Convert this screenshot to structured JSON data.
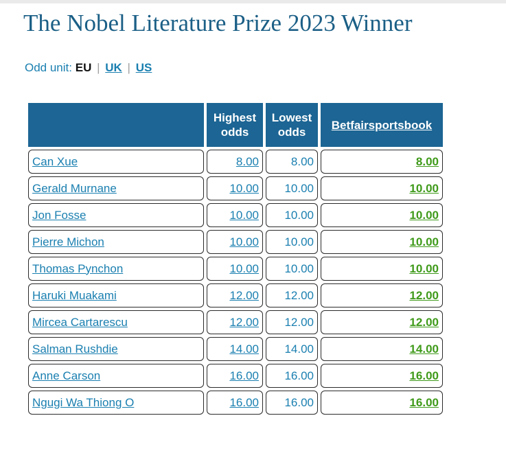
{
  "page": {
    "title": "The Nobel Literature Prize 2023 Winner"
  },
  "odd_unit": {
    "label": "Odd unit:",
    "current": "EU",
    "separator": "|",
    "options": [
      "UK",
      "US"
    ]
  },
  "table": {
    "headers": {
      "name": "",
      "highest": "Highest odds",
      "lowest": "Lowest odds",
      "bookmaker": "Betfairsportsbook"
    },
    "rows": [
      {
        "name": "Can Xue",
        "highest": "8.00",
        "lowest": "8.00",
        "bookmaker": "8.00"
      },
      {
        "name": "Gerald Murnane",
        "highest": "10.00",
        "lowest": "10.00",
        "bookmaker": "10.00"
      },
      {
        "name": "Jon Fosse",
        "highest": "10.00",
        "lowest": "10.00",
        "bookmaker": "10.00"
      },
      {
        "name": "Pierre Michon",
        "highest": "10.00",
        "lowest": "10.00",
        "bookmaker": "10.00"
      },
      {
        "name": "Thomas Pynchon",
        "highest": "10.00",
        "lowest": "10.00",
        "bookmaker": "10.00"
      },
      {
        "name": "Haruki Muakami",
        "highest": "12.00",
        "lowest": "12.00",
        "bookmaker": "12.00"
      },
      {
        "name": "Mircea Cartarescu",
        "highest": "12.00",
        "lowest": "12.00",
        "bookmaker": "12.00"
      },
      {
        "name": "Salman Rushdie",
        "highest": "14.00",
        "lowest": "14.00",
        "bookmaker": "14.00"
      },
      {
        "name": "Anne Carson",
        "highest": "16.00",
        "lowest": "16.00",
        "bookmaker": "16.00"
      },
      {
        "name": "Ngugi Wa Thiong O",
        "highest": "16.00",
        "lowest": "16.00",
        "bookmaker": "16.00"
      }
    ]
  },
  "colors": {
    "title": "#1b5f86",
    "header_bg": "#1c6594",
    "link": "#1a7fb0",
    "bookmaker_odds": "#3f9a1a"
  }
}
